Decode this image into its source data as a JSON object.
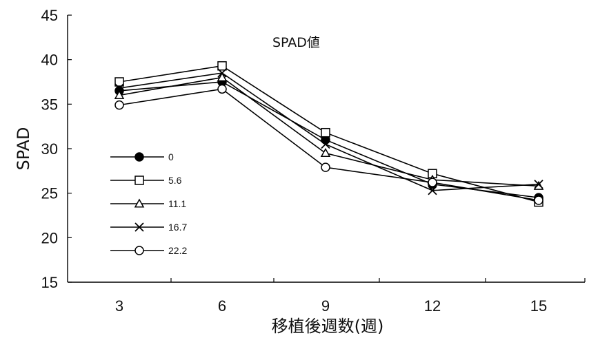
{
  "chart_data": {
    "type": "line",
    "title": "SPAD値",
    "xlabel": "移植後週数(週)",
    "ylabel": "SPAD",
    "x": [
      3,
      6,
      9,
      12,
      15
    ],
    "x_ticks": [
      "3",
      "6",
      "9",
      "12",
      "15"
    ],
    "ylim": [
      15,
      45
    ],
    "y_ticks": [
      "15",
      "20",
      "25",
      "30",
      "35",
      "40",
      "45"
    ],
    "grid": false,
    "legend_position": "left-center",
    "series": [
      {
        "name": "0",
        "marker": "filled-circle",
        "values": [
          36.5,
          37.5,
          31.0,
          26.0,
          24.5
        ]
      },
      {
        "name": "5.6",
        "marker": "open-square",
        "values": [
          37.5,
          39.3,
          31.8,
          27.2,
          24.0
        ]
      },
      {
        "name": "11.1",
        "marker": "open-triangle",
        "values": [
          36.0,
          38.0,
          29.5,
          26.5,
          25.8
        ]
      },
      {
        "name": "16.7",
        "marker": "x",
        "values": [
          36.8,
          38.5,
          30.5,
          25.3,
          26.0
        ]
      },
      {
        "name": "22.2",
        "marker": "open-circle",
        "values": [
          34.9,
          36.7,
          27.9,
          26.2,
          24.2
        ]
      }
    ]
  }
}
